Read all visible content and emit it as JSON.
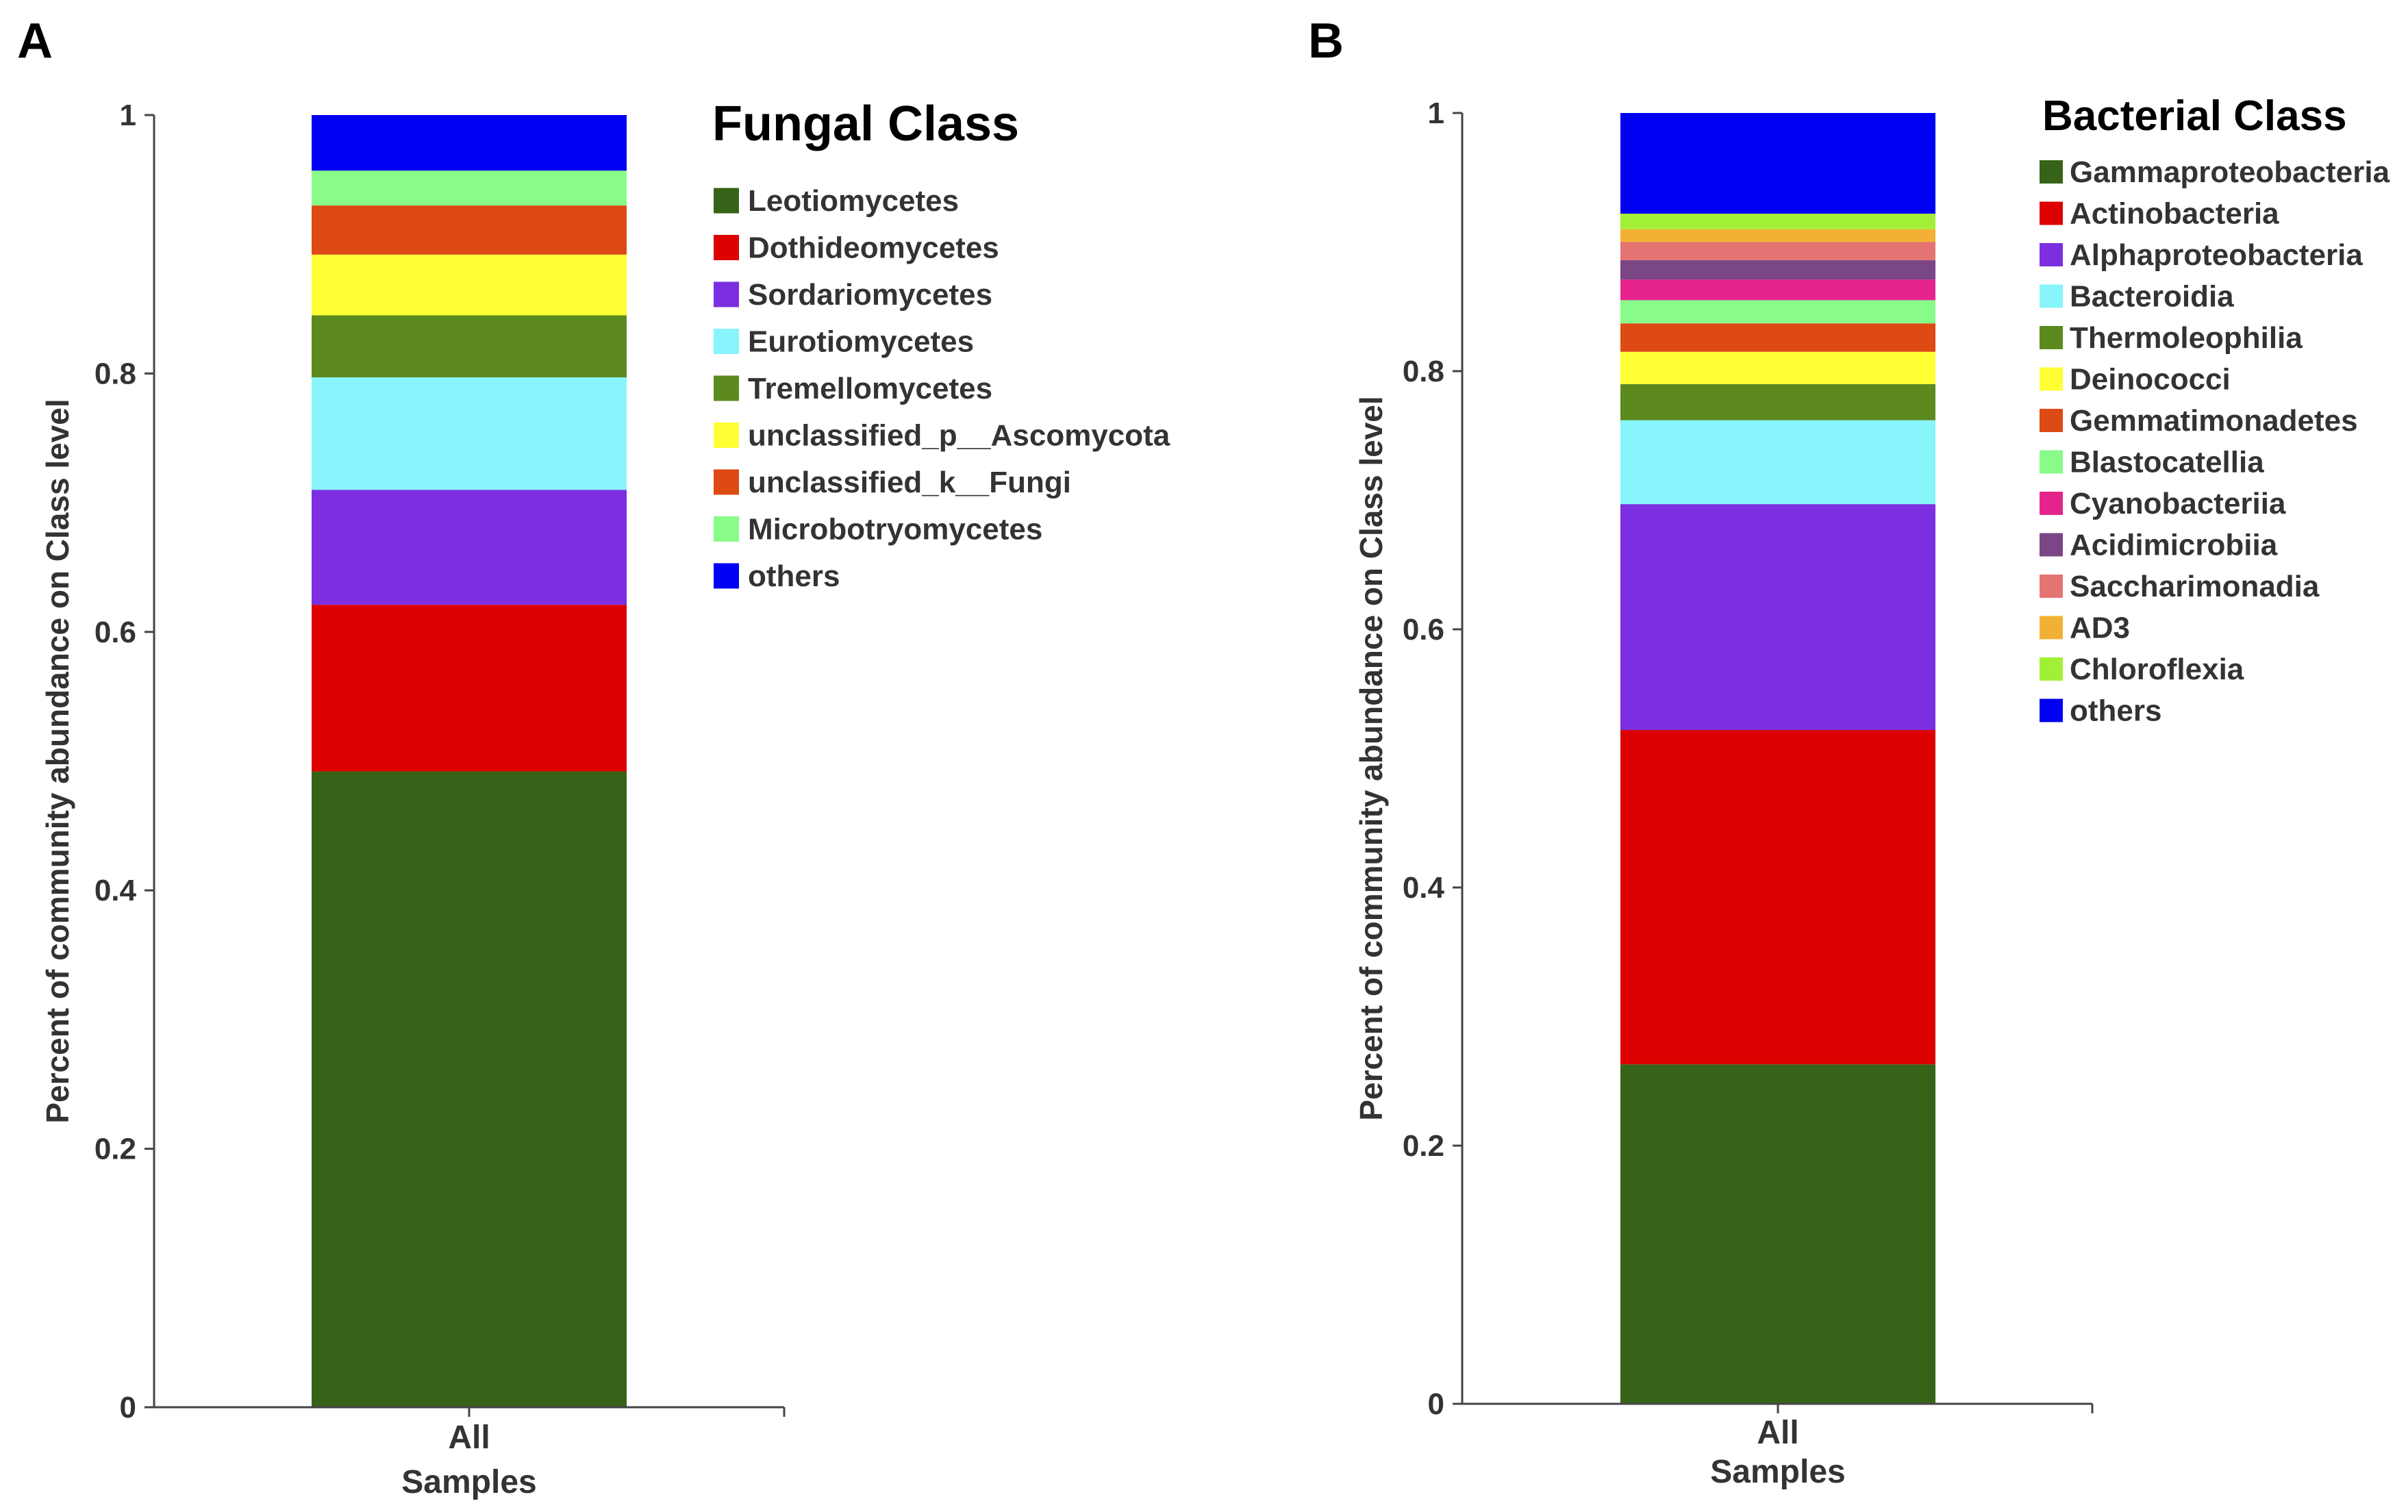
{
  "chart_data": [
    {
      "panel_label": "A",
      "type": "bar",
      "stacked": true,
      "title": "Fungal Class",
      "ylabel": "Percent of community abundance on Class level",
      "xlabel": "",
      "categories": [
        [
          "All",
          "Samples"
        ]
      ],
      "ylim": [
        0,
        1
      ],
      "yticks": [
        "0",
        "0.2",
        "0.4",
        "0.6",
        "0.8",
        "1"
      ],
      "legend_position": "right",
      "grid": false,
      "series": [
        {
          "name": "Leotiomycetes",
          "color": "#376319",
          "values": [
            0.492
          ]
        },
        {
          "name": "Dothideomycetes",
          "color": "#dd0000",
          "values": [
            0.129
          ]
        },
        {
          "name": "Sordariomycetes",
          "color": "#7b2fe0",
          "values": [
            0.089
          ]
        },
        {
          "name": "Eurotiomycetes",
          "color": "#88f4fb",
          "values": [
            0.087
          ]
        },
        {
          "name": "Tremellomycetes",
          "color": "#5c8a1f",
          "values": [
            0.048
          ]
        },
        {
          "name": "unclassified_p__Ascomycota",
          "color": "#ffff33",
          "values": [
            0.047
          ]
        },
        {
          "name": "unclassified_k__Fungi",
          "color": "#dd4a13",
          "values": [
            0.038
          ]
        },
        {
          "name": "Microbotryomycetes",
          "color": "#88fb88",
          "values": [
            0.027
          ]
        },
        {
          "name": "others",
          "color": "#0000f2",
          "values": [
            0.043
          ]
        }
      ]
    },
    {
      "panel_label": "B",
      "type": "bar",
      "stacked": true,
      "title": "Bacterial Class",
      "ylabel": "Percent of community abundance on Class level",
      "xlabel": "",
      "categories": [
        [
          "All",
          "Samples"
        ]
      ],
      "ylim": [
        0,
        1
      ],
      "yticks": [
        "0",
        "0.2",
        "0.4",
        "0.6",
        "0.8",
        "1"
      ],
      "legend_position": "right",
      "grid": false,
      "series": [
        {
          "name": "Gammaproteobacteria",
          "color": "#376319",
          "values": [
            0.263
          ]
        },
        {
          "name": "Actinobacteria",
          "color": "#dd0000",
          "values": [
            0.259
          ]
        },
        {
          "name": "Alphaproteobacteria",
          "color": "#7b2fe0",
          "values": [
            0.175
          ]
        },
        {
          "name": "Bacteroidia",
          "color": "#88f4fb",
          "values": [
            0.065
          ]
        },
        {
          "name": "Thermoleophilia",
          "color": "#5c8a1f",
          "values": [
            0.028
          ]
        },
        {
          "name": "Deinococci",
          "color": "#ffff33",
          "values": [
            0.025
          ]
        },
        {
          "name": "Gemmatimonadetes",
          "color": "#dd4a13",
          "values": [
            0.022
          ]
        },
        {
          "name": "Blastocatellia",
          "color": "#88fb88",
          "values": [
            0.018
          ]
        },
        {
          "name": "Cyanobacteriia",
          "color": "#e5238c",
          "values": [
            0.016
          ]
        },
        {
          "name": "Acidimicrobiia",
          "color": "#7a4686",
          "values": [
            0.015
          ]
        },
        {
          "name": "Saccharimonadia",
          "color": "#e47373",
          "values": [
            0.014
          ]
        },
        {
          "name": "AD3",
          "color": "#f2b134",
          "values": [
            0.01
          ]
        },
        {
          "name": "Chloroflexia",
          "color": "#a2f036",
          "values": [
            0.012
          ]
        },
        {
          "name": "others",
          "color": "#0000f2",
          "values": [
            0.078
          ]
        }
      ]
    }
  ]
}
